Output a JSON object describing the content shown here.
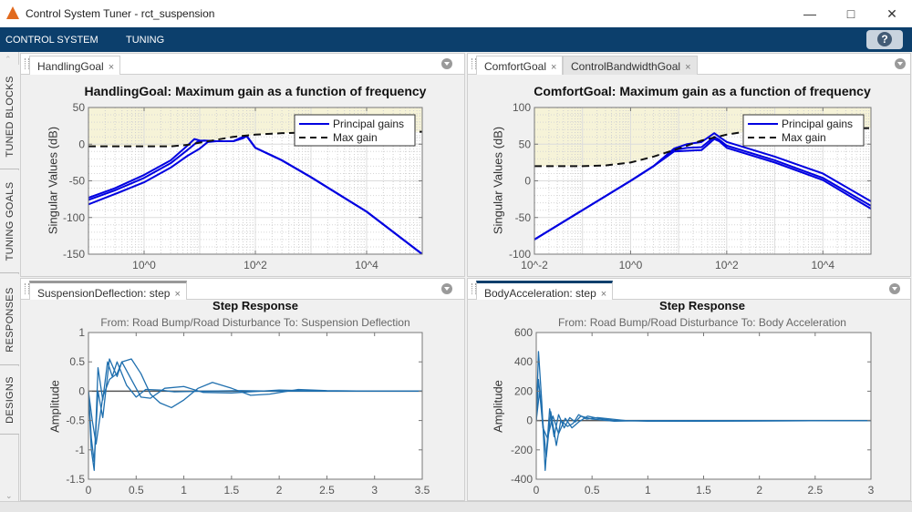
{
  "window": {
    "title": "Control System Tuner - rct_suspension",
    "logo": "matlab-logo-icon",
    "controls": [
      "minimize",
      "maximize",
      "close"
    ]
  },
  "ribbon": {
    "tabs": [
      "CONTROL SYSTEM",
      "TUNING"
    ],
    "help_label": "?"
  },
  "side_tabs": [
    "TUNED BLOCKS",
    "TUNING GOALS",
    "RESPONSES",
    "DESIGNS"
  ],
  "panels": {
    "top_left": {
      "tabs": [
        "HandlingGoal"
      ]
    },
    "top_right": {
      "tabs": [
        "ComfortGoal",
        "ControlBandwidthGoal"
      ]
    },
    "bottom_left": {
      "tabs": [
        "SuspensionDeflection: step"
      ]
    },
    "bottom_right": {
      "tabs": [
        "BodyAcceleration: step"
      ]
    }
  },
  "close_glyph": "×",
  "colors": {
    "principal_gains": "#0000e0",
    "max_gain": "#111111",
    "step": "#1f6fae",
    "violation_region": "#f6f3d8",
    "ribbon": "#0c3f6c"
  },
  "chart_data": [
    {
      "type": "line",
      "title": "HandlingGoal: Maximum gain as a function of frequency",
      "ylabel": "Singular Values (dB)",
      "xscale": "log",
      "xlim": [
        0.1,
        100000
      ],
      "ylim": [
        -150,
        50
      ],
      "xticks": [
        1,
        100,
        10000
      ],
      "xtick_labels": [
        "10^0",
        "10^2",
        "10^4"
      ],
      "yticks": [
        50,
        0,
        -50,
        -100,
        -150
      ],
      "ytick_labels": [
        "50",
        "0",
        "-50",
        "-100",
        "-150"
      ],
      "grid": true,
      "legend": "top-right",
      "legend_entries": [
        "Principal gains",
        "Max gain"
      ],
      "max_gain": {
        "x": [
          0.1,
          1,
          3,
          6,
          10,
          20,
          40,
          100,
          300,
          1000,
          100000
        ],
        "y": [
          -3,
          -3,
          -3,
          -1,
          2,
          6,
          10,
          13,
          15,
          16,
          17
        ]
      },
      "series": [
        {
          "x": [
            0.1,
            0.3,
            1,
            3,
            6,
            8,
            10,
            20,
            40,
            60,
            70,
            100,
            300,
            1000,
            10000,
            100000
          ],
          "y": [
            -73,
            -60,
            -42,
            -22,
            -2,
            7,
            5,
            4,
            4,
            10,
            11,
            -5,
            -22,
            -45,
            -92,
            -150
          ]
        },
        {
          "x": [
            0.1,
            0.3,
            1,
            3,
            6,
            9,
            12,
            20,
            40,
            60,
            70,
            100,
            300,
            1000,
            10000,
            100000
          ],
          "y": [
            -76,
            -63,
            -46,
            -26,
            -8,
            3,
            5,
            4,
            4,
            9,
            11,
            -5,
            -22,
            -45,
            -92,
            -150
          ]
        },
        {
          "x": [
            0.1,
            0.3,
            1,
            3,
            6,
            10,
            14,
            20,
            40,
            60,
            70,
            100,
            300,
            1000,
            10000,
            100000
          ],
          "y": [
            -82,
            -68,
            -52,
            -32,
            -16,
            -6,
            3,
            4,
            4,
            8,
            11,
            -5,
            -22,
            -45,
            -92,
            -150
          ]
        }
      ]
    },
    {
      "type": "line",
      "title": "ComfortGoal: Maximum gain as a function of frequency",
      "ylabel": "Singular Values (dB)",
      "xscale": "log",
      "xlim": [
        0.01,
        100000
      ],
      "ylim": [
        -100,
        100
      ],
      "xticks": [
        0.01,
        1,
        100,
        10000
      ],
      "xtick_labels": [
        "10^-2",
        "10^0",
        "10^2",
        "10^4"
      ],
      "yticks": [
        100,
        50,
        0,
        -50,
        -100
      ],
      "ytick_labels": [
        "100",
        "50",
        "0",
        "-50",
        "-100"
      ],
      "grid": true,
      "legend": "top-right",
      "legend_entries": [
        "Principal gains",
        "Max gain"
      ],
      "max_gain": {
        "x": [
          0.01,
          0.1,
          0.3,
          1,
          3,
          10,
          30,
          100,
          300,
          1000,
          100000
        ],
        "y": [
          20,
          20,
          21,
          25,
          33,
          44,
          55,
          63,
          68,
          70,
          72
        ]
      },
      "series": [
        {
          "x": [
            0.01,
            0.1,
            1,
            3,
            8,
            15,
            30,
            55,
            70,
            100,
            1000,
            10000,
            100000
          ],
          "y": [
            -80,
            -40,
            0,
            20,
            44,
            50,
            53,
            65,
            60,
            53,
            33,
            10,
            -28
          ]
        },
        {
          "x": [
            0.01,
            0.1,
            1,
            3,
            8,
            15,
            30,
            55,
            70,
            100,
            1000,
            10000,
            100000
          ],
          "y": [
            -80,
            -40,
            0,
            20,
            42,
            45,
            46,
            60,
            56,
            48,
            28,
            4,
            -34
          ]
        },
        {
          "x": [
            0.01,
            0.1,
            1,
            3,
            8,
            15,
            30,
            55,
            70,
            100,
            1000,
            10000,
            100000
          ],
          "y": [
            -80,
            -40,
            0,
            20,
            40,
            41,
            42,
            57,
            54,
            45,
            25,
            1,
            -38
          ]
        }
      ]
    },
    {
      "type": "line",
      "title": "Step Response",
      "subtitle": "From: Road Bump/Road Disturbance  To: Suspension Deflection",
      "ylabel": "Amplitude",
      "xlim": [
        0,
        3.5
      ],
      "ylim": [
        -1.5,
        1
      ],
      "xticks": [
        0,
        0.5,
        1,
        1.5,
        2,
        2.5,
        3,
        3.5
      ],
      "xtick_labels": [
        "0",
        "0.5",
        "1",
        "1.5",
        "2",
        "2.5",
        "3",
        "3.5"
      ],
      "yticks": [
        1,
        0.5,
        0,
        -0.5,
        -1,
        -1.5
      ],
      "ytick_labels": [
        "1",
        "0.5",
        "0",
        "-0.5",
        "-1",
        "-1.5"
      ],
      "grid": false,
      "series": [
        {
          "x": [
            0,
            0.03,
            0.06,
            0.1,
            0.15,
            0.2,
            0.25,
            0.3,
            0.4,
            0.5,
            0.6,
            0.75,
            0.9,
            1.2,
            1.6,
            2,
            3.5
          ],
          "y": [
            0,
            -1.0,
            -1.35,
            0.4,
            -0.15,
            0.5,
            0.25,
            0.5,
            0.1,
            -0.1,
            0.03,
            0.02,
            -0.01,
            0,
            0.01,
            0,
            0
          ]
        },
        {
          "x": [
            0,
            0.03,
            0.06,
            0.1,
            0.15,
            0.22,
            0.3,
            0.35,
            0.45,
            0.55,
            0.65,
            0.8,
            1.0,
            1.2,
            1.5,
            2,
            2.5,
            3.5
          ],
          "y": [
            0,
            -0.8,
            -1.2,
            0,
            -0.45,
            0.55,
            0.25,
            0.5,
            0.2,
            -0.1,
            -0.12,
            0.05,
            0.08,
            -0.02,
            -0.03,
            0.02,
            0,
            0
          ]
        },
        {
          "x": [
            0,
            0.04,
            0.08,
            0.15,
            0.22,
            0.3,
            0.35,
            0.45,
            0.55,
            0.65,
            0.75,
            0.87,
            1.0,
            1.15,
            1.3,
            1.5,
            1.7,
            1.9,
            2.2,
            2.5,
            3,
            3.5
          ],
          "y": [
            0,
            -0.5,
            -0.9,
            -0.1,
            0.2,
            0.3,
            0.5,
            0.55,
            0.3,
            -0.05,
            -0.2,
            -0.28,
            -0.15,
            0.05,
            0.15,
            0.05,
            -0.07,
            -0.05,
            0.03,
            0.01,
            0,
            0
          ]
        }
      ]
    },
    {
      "type": "line",
      "title": "Step Response",
      "subtitle": "From: Road Bump/Road Disturbance  To: Body Acceleration",
      "ylabel": "Amplitude",
      "xlim": [
        0,
        3
      ],
      "ylim": [
        -400,
        600
      ],
      "xticks": [
        0,
        0.5,
        1,
        1.5,
        2,
        2.5,
        3
      ],
      "xtick_labels": [
        "0",
        "0.5",
        "1",
        "1.5",
        "2",
        "2.5",
        "3"
      ],
      "yticks": [
        600,
        400,
        200,
        0,
        -200,
        -400
      ],
      "ytick_labels": [
        "600",
        "400",
        "200",
        "0",
        "-200",
        "-400"
      ],
      "grid": false,
      "series": [
        {
          "x": [
            0,
            0.02,
            0.05,
            0.08,
            0.12,
            0.16,
            0.2,
            0.25,
            0.3,
            0.35,
            0.4,
            0.5,
            0.7,
            1,
            1.5,
            3
          ],
          "y": [
            0,
            470,
            120,
            -340,
            80,
            -110,
            40,
            -50,
            20,
            -10,
            30,
            10,
            -5,
            0,
            0,
            0
          ]
        },
        {
          "x": [
            0,
            0.02,
            0.05,
            0.09,
            0.13,
            0.18,
            0.22,
            0.28,
            0.33,
            0.38,
            0.45,
            0.55,
            0.8,
            1.2,
            3
          ],
          "y": [
            0,
            280,
            60,
            -250,
            60,
            -170,
            0,
            -40,
            -20,
            40,
            10,
            20,
            0,
            -5,
            0
          ]
        },
        {
          "x": [
            0,
            0.03,
            0.06,
            0.1,
            0.15,
            0.2,
            0.26,
            0.32,
            0.38,
            0.46,
            0.55,
            0.7,
            1,
            3
          ],
          "y": [
            0,
            200,
            -50,
            -120,
            30,
            -90,
            15,
            -50,
            -10,
            30,
            15,
            0,
            -5,
            0
          ]
        }
      ]
    }
  ]
}
